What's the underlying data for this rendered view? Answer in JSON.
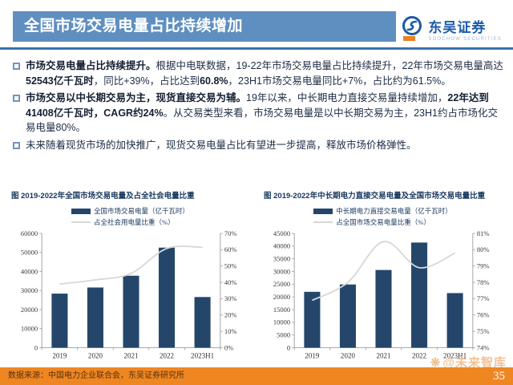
{
  "header": {
    "title": "全国市场交易电量占比持续增加",
    "brand_cn": "东吴证券",
    "brand_en": "SOOCHOW SECURITIES"
  },
  "bullets": [
    {
      "segments": [
        {
          "t": "市场交易电量占比持续提升。",
          "b": true
        },
        {
          "t": "根据中电联数据，19-22年市场交易电量占比持续提升，22年市场交易电量高达",
          "b": false
        },
        {
          "t": "52543亿千瓦时",
          "b": true
        },
        {
          "t": "，同比+39%，占比达到",
          "b": false
        },
        {
          "t": "60.8%",
          "b": true
        },
        {
          "t": "，23H1市场交易电量同比+7%，占比约为61.5%。",
          "b": false
        }
      ]
    },
    {
      "segments": [
        {
          "t": "市场交易以中长期交易为主，现货直接交易为辅。",
          "b": true
        },
        {
          "t": "19年以来，中长期电力直接交易量持续增加，",
          "b": false
        },
        {
          "t": "22年达到41408亿千瓦时，CAGR约24%",
          "b": true
        },
        {
          "t": "。从交易类型来看，市场交易电量是以中长期交易为主，23H1约占市场化交易电量80%。",
          "b": false
        }
      ]
    },
    {
      "segments": [
        {
          "t": "未来随着现货市场的加快推广，现货交易电量占比有望进一步提高，释放市场价格弹性。",
          "b": false
        }
      ]
    }
  ],
  "chart_data": [
    {
      "type": "bar",
      "subtype": "bar+line-dual-axis",
      "title": "图  2019-2022年全国市场交易电量及占全社会电量比重",
      "categories": [
        "2019",
        "2020",
        "2021",
        "2022",
        "2023H1"
      ],
      "series": [
        {
          "name": "全国市场交易电量（亿千瓦时）",
          "type": "bar",
          "axis": "left",
          "values": [
            28400,
            31600,
            37800,
            52543,
            26600
          ],
          "color": "#24466b"
        },
        {
          "name": "占全社会用电量比重（%）",
          "type": "line",
          "axis": "right",
          "values": [
            39,
            41.5,
            45.5,
            60.8,
            61.5
          ],
          "color": "#d7d7d7"
        }
      ],
      "left_axis": {
        "min": 0,
        "max": 60000,
        "step": 10000,
        "suffix": ""
      },
      "right_axis": {
        "min": 0,
        "max": 70,
        "step": 10,
        "suffix": "%"
      },
      "legend_position": "top",
      "grid": false
    },
    {
      "type": "bar",
      "subtype": "bar+line-dual-axis",
      "title": "图  2019-2022年中长期电力直接交易电量及全国市场交易电量比重",
      "categories": [
        "2019",
        "2020",
        "2021",
        "2022",
        "2023H1"
      ],
      "series": [
        {
          "name": "中长期电力直接交易电量（亿千瓦时）",
          "type": "bar",
          "axis": "left",
          "values": [
            22000,
            24900,
            30600,
            41408,
            21500
          ],
          "color": "#24466b"
        },
        {
          "name": "占全国市场交易电量比重（%）",
          "type": "line",
          "axis": "right",
          "values": [
            76.9,
            78,
            80.5,
            78.9,
            79.8
          ],
          "color": "#d7d7d7"
        }
      ],
      "left_axis": {
        "min": 0,
        "max": 45000,
        "step": 5000,
        "suffix": ""
      },
      "right_axis": {
        "min": 74,
        "max": 81,
        "step": 1,
        "suffix": "%"
      },
      "legend_position": "top",
      "grid": false
    }
  ],
  "watermark": {
    "icon_glyph": "❋",
    "text": "@未来智库"
  },
  "footer": {
    "source": "数据来源：中国电力企业联合会，东吴证券研究所",
    "page_number": "35"
  },
  "colors": {
    "title_bar": "#5f8fc1",
    "header_rule": "#3a72ad",
    "bar_fill": "#24466b",
    "line_stroke": "#d7d7d7",
    "footer_bg": "#ee8622",
    "brand_blue": "#1b5aa8",
    "watermark": "#f3c193",
    "body_text": "#1d2c45"
  }
}
